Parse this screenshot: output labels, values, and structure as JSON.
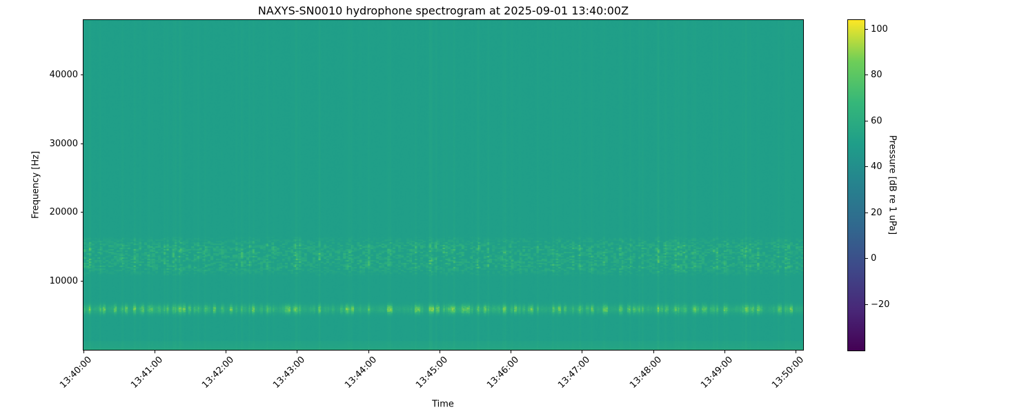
{
  "figure": {
    "background_color": "#ffffff",
    "spine_color": "#000000",
    "text_color": "#000000"
  },
  "chart_data": {
    "type": "heatmap",
    "title": "NAXYS-SN0010 hydrophone spectrogram at 2025-09-01 13:40:00Z",
    "xlabel": "Time",
    "ylabel": "Frequency [Hz]",
    "colorbar_label": "Pressure [dB re 1 uPa]",
    "colormap": "viridis",
    "colormap_stops": [
      "#440154",
      "#482878",
      "#3e4989",
      "#31688e",
      "#26828e",
      "#1f9e89",
      "#35b779",
      "#6ece58",
      "#fde725"
    ],
    "grid": false,
    "legend": "colorbar-right",
    "freq_range_hz": [
      0,
      48000
    ],
    "time_span_seconds": 606,
    "pressure_range_db": [
      -40,
      104
    ],
    "background_level_db": 50.4,
    "x_ticks": [
      {
        "label": "13:40:00",
        "t": 0
      },
      {
        "label": "13:41:00",
        "t": 60
      },
      {
        "label": "13:42:00",
        "t": 120
      },
      {
        "label": "13:43:00",
        "t": 180
      },
      {
        "label": "13:44:00",
        "t": 240
      },
      {
        "label": "13:45:00",
        "t": 300
      },
      {
        "label": "13:46:00",
        "t": 360
      },
      {
        "label": "13:47:00",
        "t": 420
      },
      {
        "label": "13:48:00",
        "t": 480
      },
      {
        "label": "13:49:00",
        "t": 540
      },
      {
        "label": "13:50:00",
        "t": 600
      }
    ],
    "y_ticks": [
      {
        "label": "10000",
        "value": 10000
      },
      {
        "label": "20000",
        "value": 20000
      },
      {
        "label": "30000",
        "value": 30000
      },
      {
        "label": "40000",
        "value": 40000
      }
    ],
    "colorbar_ticks": [
      {
        "label": "100",
        "value": 100
      },
      {
        "label": "80",
        "value": 80
      },
      {
        "label": "60",
        "value": 60
      },
      {
        "label": "40",
        "value": 40
      },
      {
        "label": "20",
        "value": 20
      },
      {
        "label": "0",
        "value": 0
      },
      {
        "label": "−20",
        "value": -20
      }
    ],
    "features": {
      "tonal_band": {
        "center_hz": 5950,
        "width_hz": 900,
        "peak_level_db": 92,
        "style": "bright dashed tonal band"
      },
      "speckle_band": {
        "freq_low_hz": 10700,
        "freq_high_hz": 16600,
        "peak_level_db": 78,
        "style": "speckled broadband activity"
      },
      "low_frequency_band": {
        "freq_low_hz": 0,
        "freq_high_hz": 1350,
        "peak_level_db": 62,
        "style": "continuous bright strip along bottom"
      },
      "transients": {
        "style": "vertical broadband striations aligned across all bands",
        "level_boost_db": 5
      }
    }
  }
}
